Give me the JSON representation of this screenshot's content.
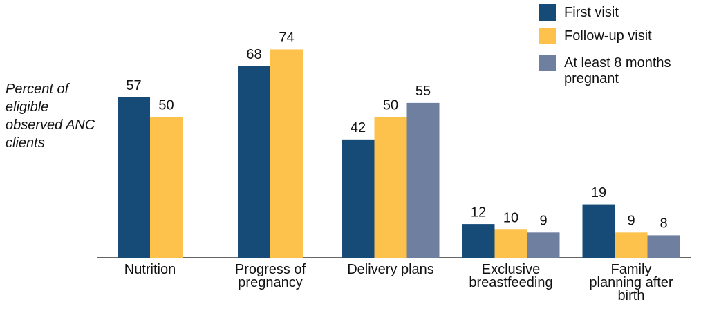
{
  "chart_data": {
    "type": "bar",
    "y_label": "Percent of eligible observed ANC clients",
    "categories": [
      "Nutrition",
      "Progress of pregnancy",
      "Delivery plans",
      "Exclusive breastfeeding",
      "Family planning after birth"
    ],
    "series": [
      {
        "name": "First visit",
        "color": "#164b78",
        "values": [
          57,
          68,
          42,
          12,
          19
        ]
      },
      {
        "name": "Follow-up visit",
        "color": "#fdc24b",
        "values": [
          50,
          74,
          50,
          10,
          9
        ]
      },
      {
        "name": "At least 8 months pregnant",
        "color": "#6e7fa0",
        "values": [
          null,
          null,
          55,
          9,
          8
        ]
      }
    ],
    "ylim": [
      0,
      80
    ]
  }
}
